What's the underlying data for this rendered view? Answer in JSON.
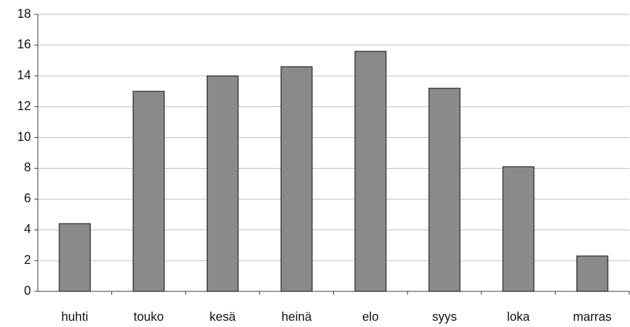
{
  "chart_data": {
    "type": "bar",
    "categories": [
      "huhti",
      "touko",
      "kesä",
      "heinä",
      "elo",
      "syys",
      "loka",
      "marras"
    ],
    "values": [
      4.4,
      13.0,
      14.0,
      14.6,
      15.6,
      13.2,
      8.1,
      2.3
    ],
    "color": "#8a8a8a",
    "ylim": [
      0,
      18
    ],
    "yticks": [
      0,
      2,
      4,
      6,
      8,
      10,
      12,
      14,
      16,
      18
    ],
    "grid": true
  }
}
